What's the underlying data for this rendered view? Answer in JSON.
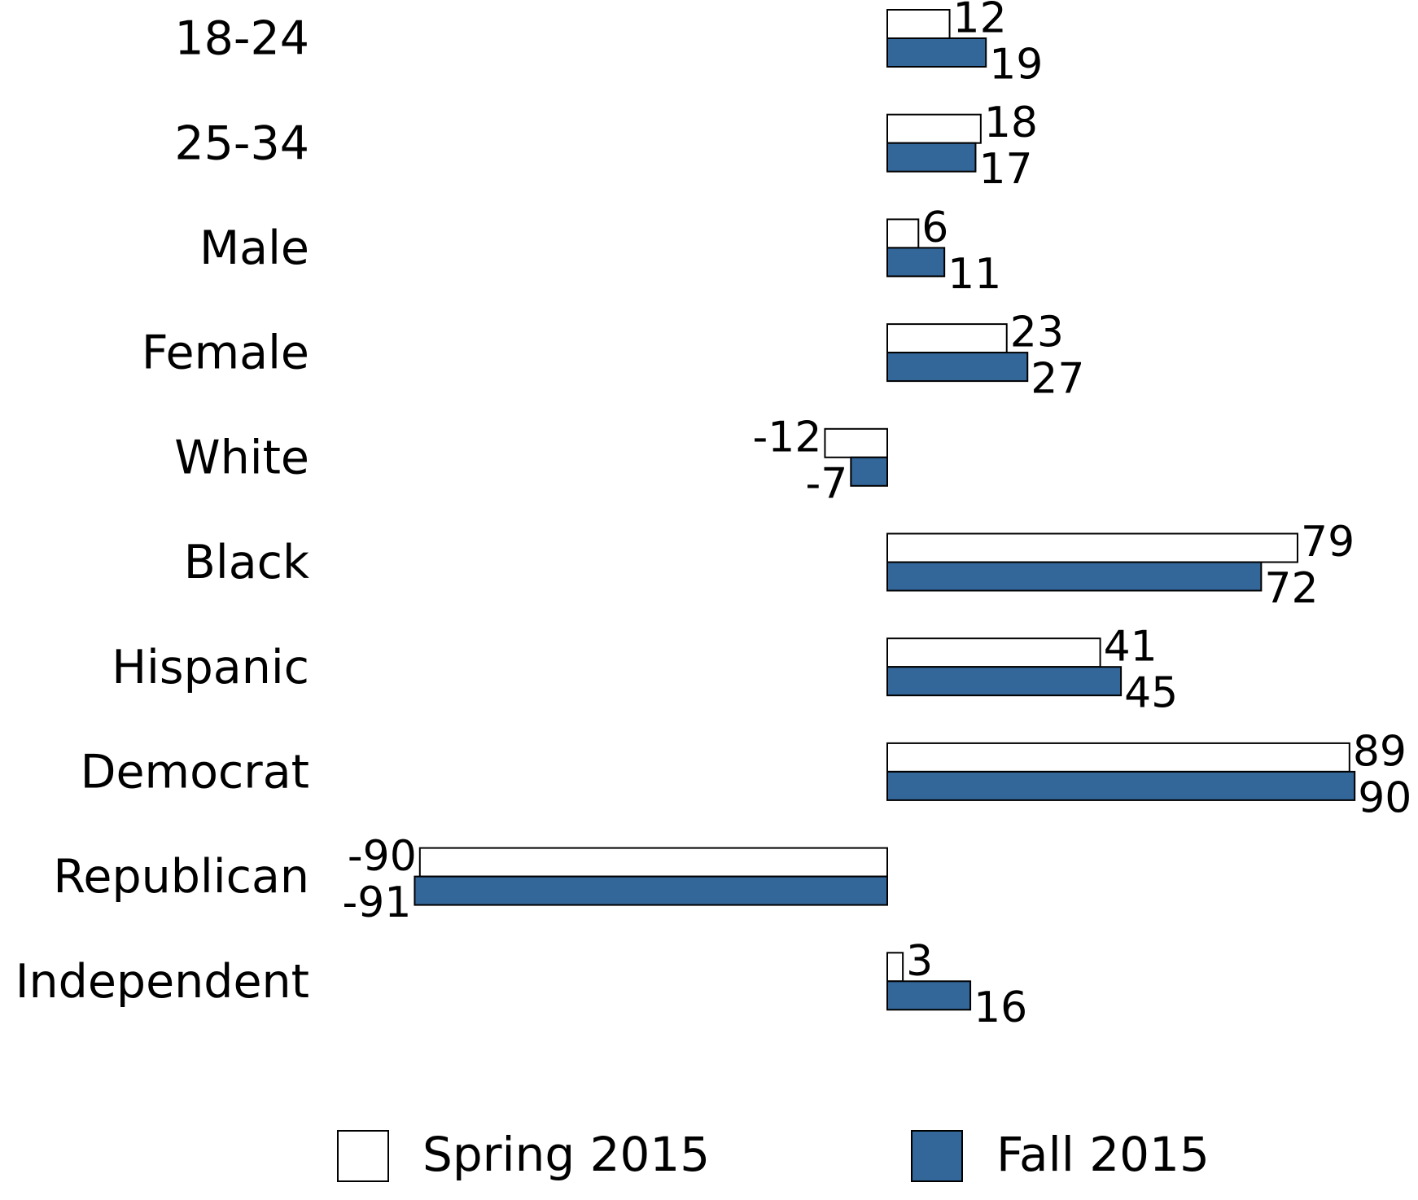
{
  "chart_data": {
    "type": "bar",
    "orientation": "horizontal",
    "categories": [
      "18-24",
      "25-34",
      "Male",
      "Female",
      "White",
      "Black",
      "Hispanic",
      "Democrat",
      "Republican",
      "Independent"
    ],
    "series": [
      {
        "name": "Spring 2015",
        "color": "#ffffff",
        "values": [
          12,
          18,
          6,
          23,
          -12,
          79,
          41,
          89,
          -90,
          3
        ]
      },
      {
        "name": "Fall 2015",
        "color": "#336699",
        "values": [
          19,
          17,
          11,
          27,
          -7,
          72,
          45,
          90,
          -91,
          16
        ]
      }
    ],
    "xlim": [
      -100,
      100
    ]
  }
}
